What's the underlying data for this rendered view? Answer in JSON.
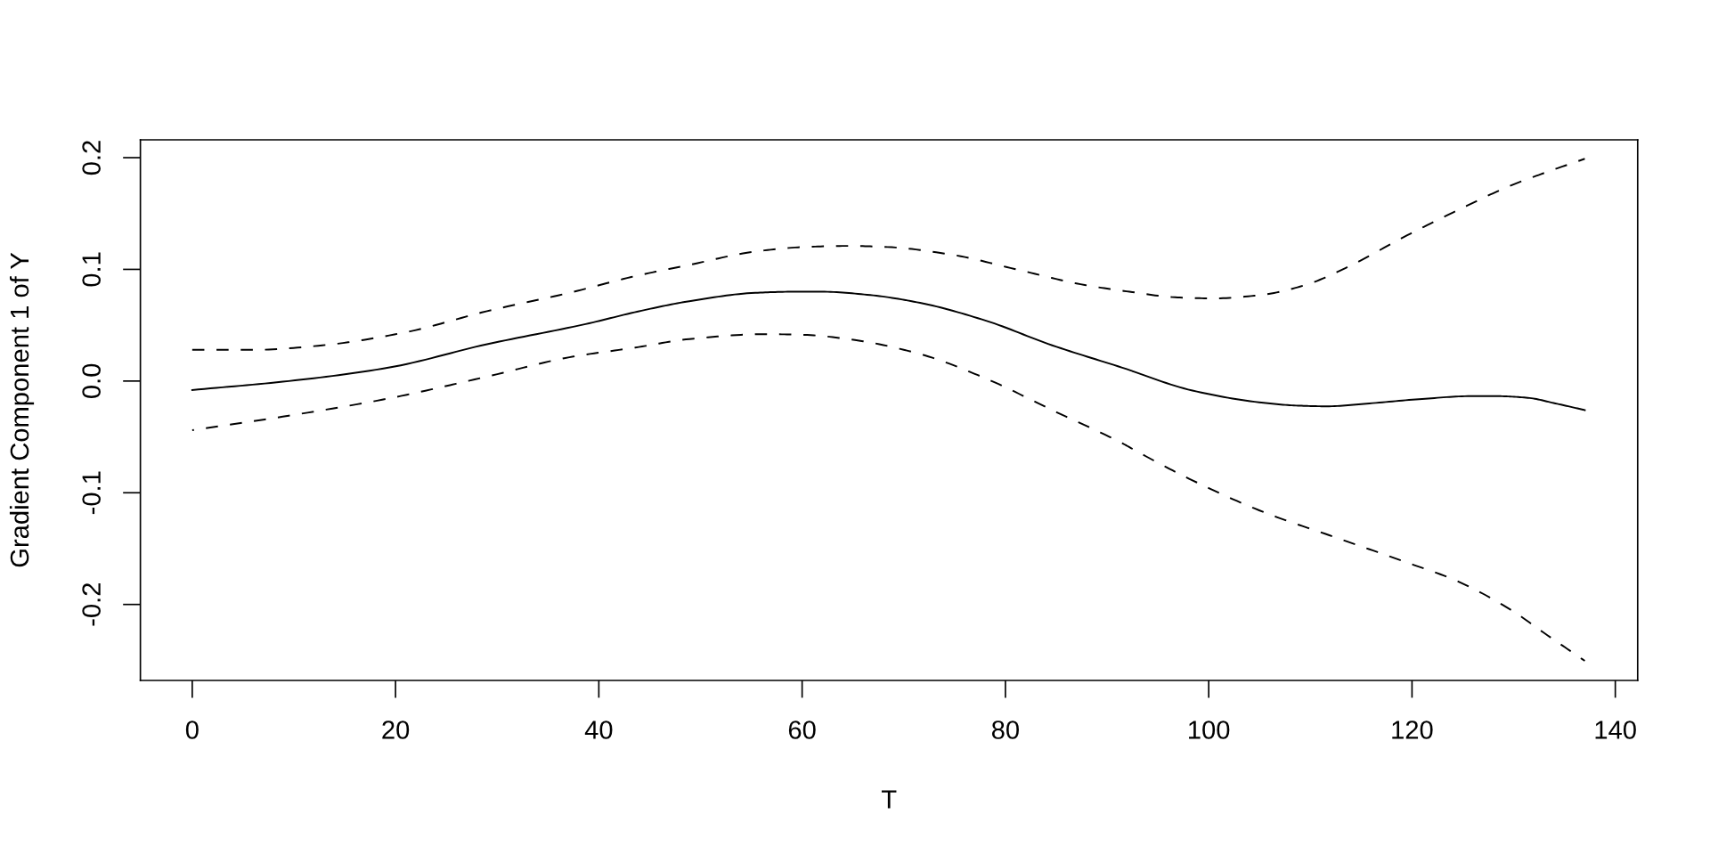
{
  "chart_data": {
    "type": "line",
    "xlabel": "T",
    "ylabel": "Gradient Component 1 of Y",
    "xlim": [
      -5.1,
      142.2
    ],
    "xticks": [
      0,
      20,
      40,
      60,
      80,
      100,
      120,
      140
    ],
    "ylim": [
      -0.268,
      0.216
    ],
    "yticks": [
      -0.2,
      -0.1,
      {
        "value": 0,
        "label": "0.0"
      },
      0.1,
      0.2
    ],
    "series": [
      {
        "color": "#000000",
        "line_style": "solid",
        "x": [
          0,
          9.5,
          19.3,
          29.0,
          38.7,
          44.2,
          48.9,
          55.4,
          59.3,
          61.9,
          66.7,
          71.6,
          78.1,
          84.6,
          91.5,
          98.4,
          105.4,
          108.8,
          111.6,
          115.8,
          121.0,
          125.8,
          128.3,
          131.4,
          134.1,
          137
        ],
        "values": [
          -0.008,
          0.0,
          0.012,
          0.033,
          0.051,
          0.063,
          0.0715,
          0.079,
          0.08,
          0.08,
          0.077,
          0.07,
          0.054,
          0.032,
          0.012,
          -0.0085,
          -0.0195,
          -0.022,
          -0.0226,
          -0.02,
          -0.016,
          -0.0135,
          -0.0135,
          -0.015,
          -0.02,
          -0.026
        ]
      },
      {
        "color": "#000000",
        "line_style": "dashed",
        "x": [
          0,
          6.3,
          12.8,
          20.9,
          29.0,
          37.1,
          43.6,
          48.9,
          55.4,
          60.2,
          64.5,
          68.4,
          74.8,
          81.3,
          87.8,
          92.2,
          96.7,
          100.5,
          105.4,
          109.5,
          114.0,
          119.2,
          124.4,
          129.6,
          133.1,
          137
        ],
        "values": [
          0.028,
          0.028,
          0.032,
          0.0435,
          0.0626,
          0.079,
          0.094,
          0.104,
          0.116,
          0.12,
          0.121,
          0.12,
          0.113,
          0.0995,
          0.086,
          0.08,
          0.075,
          0.074,
          0.0774,
          0.086,
          0.1036,
          0.129,
          0.1525,
          0.1746,
          0.1866,
          0.199
        ]
      },
      {
        "color": "#000000",
        "line_style": "dashed",
        "x": [
          0,
          9.5,
          19.3,
          29.0,
          37.1,
          43.6,
          48.9,
          56.3,
          60.2,
          65.2,
          71.6,
          78.1,
          84.6,
          91.5,
          93.2,
          98.4,
          105.4,
          112.3,
          119.2,
          124.4,
          129.6,
          133.1,
          137
        ],
        "values": [
          -0.044,
          -0.031,
          -0.0156,
          0.004,
          0.0213,
          0.03,
          0.0376,
          0.042,
          0.0414,
          0.0367,
          0.0242,
          0.0022,
          -0.026,
          -0.0557,
          -0.0643,
          -0.0889,
          -0.1173,
          -0.1394,
          -0.1615,
          -0.1789,
          -0.2041,
          -0.2262,
          -0.2505
        ]
      }
    ]
  }
}
